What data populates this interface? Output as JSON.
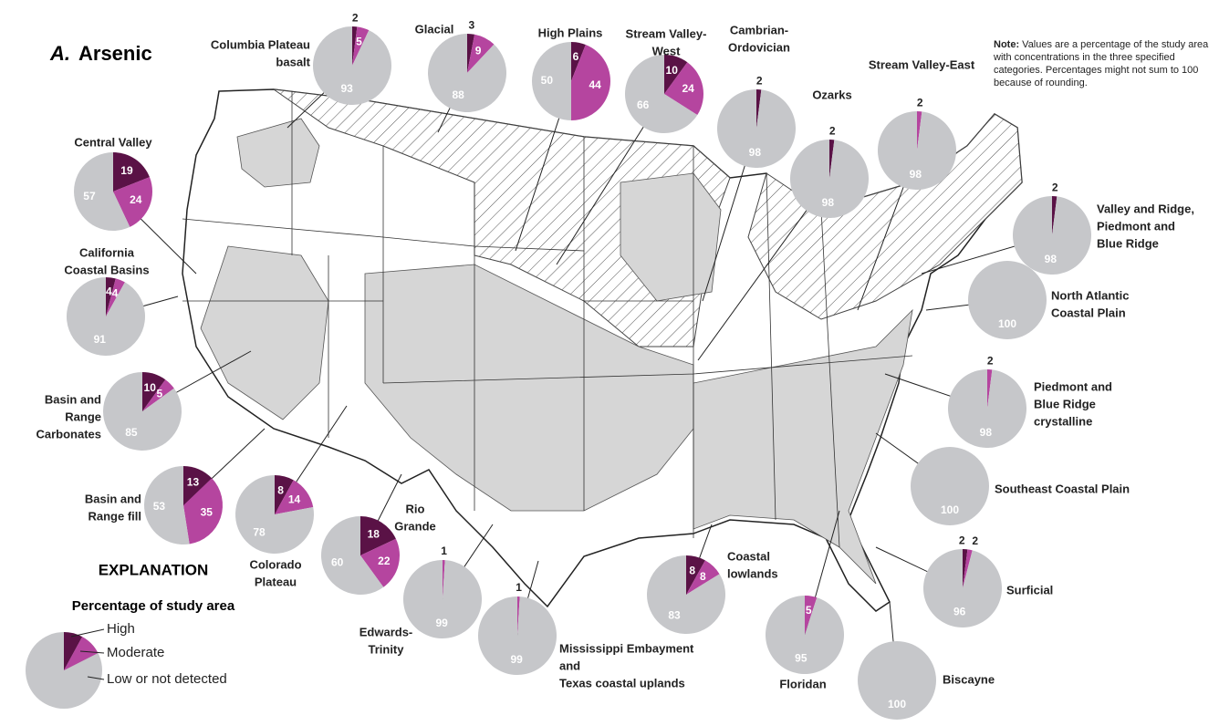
{
  "panel": "A.",
  "title": "Arsenic",
  "note": {
    "label": "Note:",
    "text": "Values are a percentage of the study area with concentrations in the three specified categories. Percentages might not sum to 100 because of rounding."
  },
  "legend": {
    "heading": "EXPLANATION",
    "subheading": "Percentage of study area",
    "categories": [
      {
        "name": "High",
        "color": "#5a1246"
      },
      {
        "name": "Moderate",
        "color": "#b5459f"
      },
      {
        "name": "Low or not detected",
        "color": "#c6c7ca"
      }
    ]
  },
  "regions": [
    {
      "name_lines": [
        "Columbia Plateau",
        "basalt"
      ],
      "values": [
        2,
        5,
        93
      ]
    },
    {
      "name_lines": [
        "Glacial"
      ],
      "values": [
        3,
        9,
        88
      ]
    },
    {
      "name_lines": [
        "High Plains"
      ],
      "values": [
        6,
        44,
        50
      ]
    },
    {
      "name_lines": [
        "Stream Valley-",
        "West"
      ],
      "values": [
        10,
        24,
        66
      ]
    },
    {
      "name_lines": [
        "Cambrian-",
        "Ordovician"
      ],
      "values": [
        2,
        null,
        98
      ]
    },
    {
      "name_lines": [
        "Ozarks"
      ],
      "values": [
        2,
        null,
        98
      ]
    },
    {
      "name_lines": [
        "Stream Valley-East"
      ],
      "values": [
        null,
        2,
        98
      ]
    },
    {
      "name_lines": [
        "Valley and Ridge,",
        "Piedmont and",
        "Blue Ridge"
      ],
      "values": [
        2,
        null,
        98
      ]
    },
    {
      "name_lines": [
        "North Atlantic",
        "Coastal Plain"
      ],
      "values": [
        null,
        null,
        100
      ]
    },
    {
      "name_lines": [
        "Piedmont and",
        "Blue Ridge",
        "crystalline"
      ],
      "values": [
        null,
        2,
        98
      ]
    },
    {
      "name_lines": [
        "Southeast Coastal Plain"
      ],
      "values": [
        null,
        null,
        100
      ]
    },
    {
      "name_lines": [
        "Surficial"
      ],
      "values": [
        2,
        2,
        96
      ]
    },
    {
      "name_lines": [
        "Biscayne"
      ],
      "values": [
        null,
        null,
        100
      ]
    },
    {
      "name_lines": [
        "Floridan"
      ],
      "values": [
        null,
        5,
        95
      ]
    },
    {
      "name_lines": [
        "Coastal",
        "lowlands"
      ],
      "values": [
        8,
        8,
        83
      ]
    },
    {
      "name_lines": [
        "Mississippi Embayment",
        "and",
        "Texas coastal uplands"
      ],
      "values": [
        null,
        1,
        99
      ]
    },
    {
      "name_lines": [
        "Edwards-",
        "Trinity"
      ],
      "values": [
        null,
        1,
        99
      ]
    },
    {
      "name_lines": [
        "Rio",
        "Grande"
      ],
      "values": [
        18,
        22,
        60
      ]
    },
    {
      "name_lines": [
        "Colorado",
        "Plateau"
      ],
      "values": [
        8,
        14,
        78
      ]
    },
    {
      "name_lines": [
        "Basin and",
        "Range fill"
      ],
      "values": [
        13,
        35,
        53
      ]
    },
    {
      "name_lines": [
        "Basin and",
        "Range",
        "Carbonates"
      ],
      "values": [
        10,
        5,
        85
      ]
    },
    {
      "name_lines": [
        "California",
        "Coastal Basins"
      ],
      "values": [
        4,
        4,
        91
      ]
    },
    {
      "name_lines": [
        "Central Valley"
      ],
      "values": [
        19,
        24,
        57
      ]
    }
  ]
}
